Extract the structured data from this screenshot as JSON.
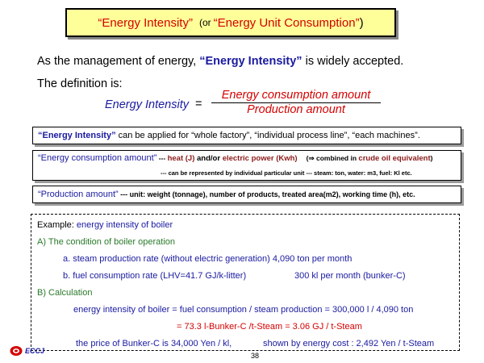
{
  "title": {
    "quote_open": "“",
    "main": "Energy Intensity",
    "quote_close": "”",
    "or_word": "(or",
    "alt": "“Energy Unit Consumption”",
    "close_paren": ")"
  },
  "intro": {
    "line1_pre": "As the management of energy, ",
    "line1_term": "“Energy Intensity”",
    "line1_post": " is widely accepted.",
    "line2": "The definition is:"
  },
  "formula": {
    "lhs": "Energy Intensity",
    "equals": "=",
    "numerator": "Energy consumption amount",
    "denominator": "Production amount"
  },
  "box_applied": {
    "term": "“Energy Intensity”",
    "text": " can be applied for “whole factory”, “individual process line”, “each machines”."
  },
  "box_energy": {
    "term": "“Energy consumption amount”",
    "dash": " --- ",
    "heat": "heat (J)",
    "and_or": " and/or ",
    "power": "electric power (Kwh)",
    "combined_pre": "(⇒ combined in ",
    "combined_term": "crude oil equivalent",
    "combined_post": ")",
    "line2": "--- can be represented by individual particular unit --- steam: ton, water: m3, fuel: Kl etc."
  },
  "box_production": {
    "term": "“Production amount”",
    "text": " --- unit: weight (tonnage), number of products, treated area(m2), working time (h), etc."
  },
  "example": {
    "heading_pre": "Example: ",
    "heading_term": "energy intensity of boiler",
    "a_heading": "A) The condition of boiler operation",
    "a1": "a. steam production rate (without electric generation) 4,090 ton per month",
    "a2_left": "b. fuel consumption rate (LHV=41.7 GJ/k-litter)",
    "a2_right": "300 kl per month   (bunker-C)",
    "b_heading": "B) Calculation",
    "calc1": "energy intensity of boiler = fuel consumption / steam production = 300,000 l / 4,090 ton",
    "calc2": "= 73.3 l-Bunker-C /t-Steam = 3.06 GJ / t-Steam",
    "calc3_pre": "the price of Bunker-C is 34,000 Yen / kl,",
    "calc3_post": "shown by energy cost : 2,492 Yen / t-Steam"
  },
  "footer": {
    "logo_text": "ECCJ",
    "page_number": "38"
  },
  "colors": {
    "red": "#d40000",
    "blue": "#1a1aa0",
    "brown": "#8b1a1a",
    "green": "#2a7a2a",
    "title_bg": "#ffff99"
  }
}
